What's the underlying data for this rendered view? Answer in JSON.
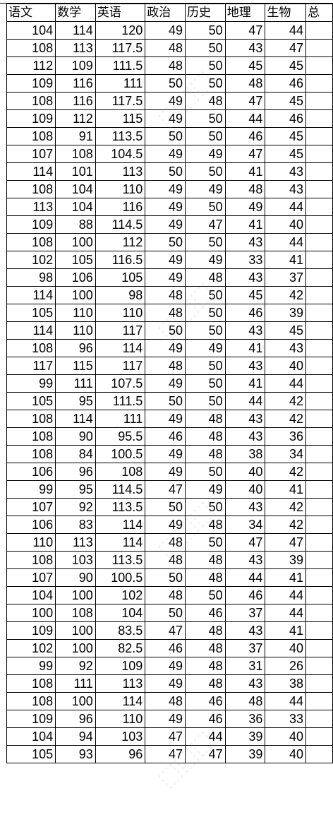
{
  "table": {
    "headers": [
      "语文",
      "数学",
      "英语",
      "政治",
      "历史",
      "地理",
      "生物",
      "总"
    ],
    "rows": [
      [
        "104",
        "114",
        "120",
        "49",
        "50",
        "47",
        "44",
        ""
      ],
      [
        "108",
        "113",
        "117.5",
        "48",
        "50",
        "43",
        "47",
        ""
      ],
      [
        "112",
        "109",
        "111.5",
        "48",
        "50",
        "45",
        "45",
        ""
      ],
      [
        "109",
        "116",
        "111",
        "50",
        "50",
        "48",
        "46",
        ""
      ],
      [
        "108",
        "116",
        "117.5",
        "49",
        "48",
        "47",
        "45",
        ""
      ],
      [
        "109",
        "112",
        "115",
        "49",
        "50",
        "44",
        "46",
        ""
      ],
      [
        "108",
        "91",
        "113.5",
        "50",
        "50",
        "46",
        "45",
        ""
      ],
      [
        "107",
        "108",
        "104.5",
        "49",
        "49",
        "47",
        "45",
        ""
      ],
      [
        "114",
        "101",
        "113",
        "50",
        "50",
        "41",
        "43",
        ""
      ],
      [
        "108",
        "104",
        "110",
        "49",
        "49",
        "48",
        "43",
        ""
      ],
      [
        "113",
        "104",
        "116",
        "49",
        "50",
        "49",
        "44",
        ""
      ],
      [
        "109",
        "88",
        "114.5",
        "49",
        "47",
        "41",
        "40",
        ""
      ],
      [
        "108",
        "100",
        "112",
        "50",
        "50",
        "43",
        "44",
        ""
      ],
      [
        "102",
        "105",
        "116.5",
        "49",
        "49",
        "33",
        "41",
        ""
      ],
      [
        "98",
        "106",
        "105",
        "49",
        "48",
        "43",
        "37",
        ""
      ],
      [
        "114",
        "100",
        "98",
        "48",
        "50",
        "45",
        "42",
        ""
      ],
      [
        "105",
        "110",
        "110",
        "48",
        "50",
        "46",
        "39",
        ""
      ],
      [
        "114",
        "110",
        "117",
        "50",
        "50",
        "43",
        "45",
        ""
      ],
      [
        "108",
        "96",
        "114",
        "49",
        "49",
        "41",
        "43",
        ""
      ],
      [
        "117",
        "115",
        "117",
        "48",
        "50",
        "43",
        "40",
        ""
      ],
      [
        "99",
        "111",
        "107.5",
        "49",
        "50",
        "41",
        "44",
        ""
      ],
      [
        "105",
        "95",
        "111.5",
        "50",
        "50",
        "44",
        "42",
        ""
      ],
      [
        "108",
        "114",
        "111",
        "49",
        "48",
        "43",
        "42",
        ""
      ],
      [
        "108",
        "90",
        "95.5",
        "46",
        "48",
        "43",
        "36",
        ""
      ],
      [
        "108",
        "84",
        "100.5",
        "49",
        "48",
        "38",
        "34",
        ""
      ],
      [
        "106",
        "96",
        "108",
        "49",
        "50",
        "40",
        "42",
        ""
      ],
      [
        "99",
        "95",
        "114.5",
        "47",
        "49",
        "40",
        "41",
        ""
      ],
      [
        "107",
        "92",
        "113.5",
        "50",
        "50",
        "43",
        "42",
        ""
      ],
      [
        "106",
        "83",
        "114",
        "49",
        "48",
        "34",
        "42",
        ""
      ],
      [
        "110",
        "113",
        "114",
        "48",
        "50",
        "47",
        "47",
        ""
      ],
      [
        "108",
        "103",
        "113.5",
        "48",
        "48",
        "43",
        "39",
        ""
      ],
      [
        "107",
        "90",
        "100.5",
        "50",
        "48",
        "44",
        "41",
        ""
      ],
      [
        "104",
        "100",
        "102",
        "48",
        "50",
        "46",
        "44",
        ""
      ],
      [
        "100",
        "108",
        "104",
        "50",
        "46",
        "37",
        "44",
        ""
      ],
      [
        "109",
        "100",
        "83.5",
        "47",
        "48",
        "43",
        "41",
        ""
      ],
      [
        "102",
        "100",
        "82.5",
        "46",
        "48",
        "37",
        "40",
        ""
      ],
      [
        "99",
        "92",
        "109",
        "49",
        "48",
        "31",
        "26",
        ""
      ],
      [
        "108",
        "111",
        "113",
        "49",
        "48",
        "43",
        "38",
        ""
      ],
      [
        "108",
        "100",
        "114",
        "48",
        "46",
        "48",
        "44",
        ""
      ],
      [
        "109",
        "96",
        "110",
        "49",
        "46",
        "36",
        "33",
        ""
      ],
      [
        "104",
        "94",
        "103",
        "47",
        "44",
        "39",
        "40",
        ""
      ],
      [
        "105",
        "93",
        "96",
        "47",
        "47",
        "39",
        "40",
        ""
      ]
    ]
  }
}
